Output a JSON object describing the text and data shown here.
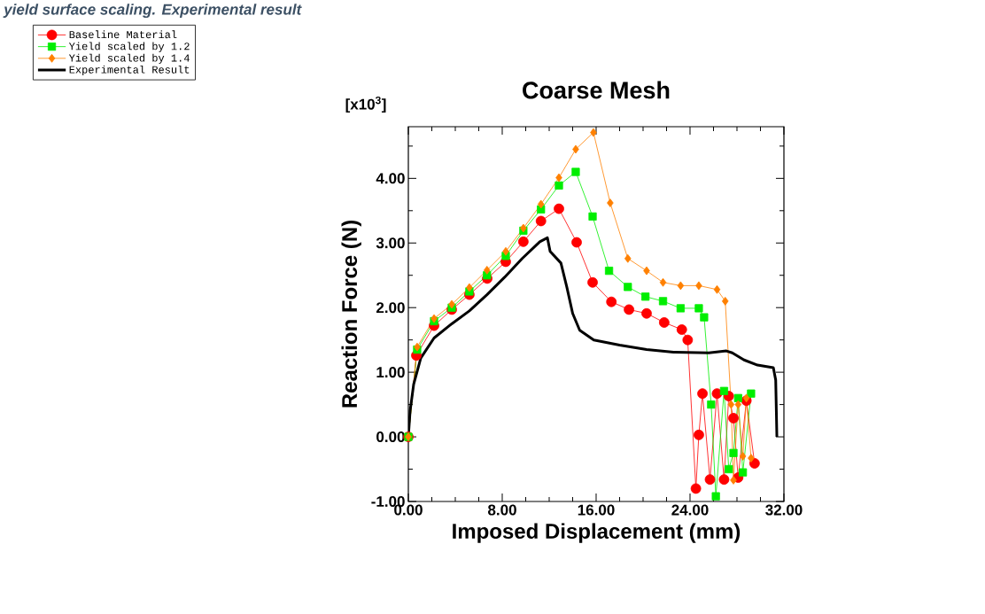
{
  "chart_data": {
    "type": "line",
    "title": "Coarse Mesh",
    "xlabel": "Imposed Displacement (mm)",
    "ylabel": "Reaction Force (N)",
    "annotations": [
      "[x10$^{3}$]",
      "yield surface scaling. Experimental result"
    ],
    "xlim": [
      0,
      32
    ],
    "ylim": [
      -1,
      4.8
    ],
    "xticks": [
      {
        "value": 0,
        "label": "0.00"
      },
      {
        "value": 2,
        "label": null
      },
      {
        "value": 4,
        "label": null
      },
      {
        "value": 6,
        "label": null
      },
      {
        "value": 8,
        "label": "8.00"
      },
      {
        "value": 10,
        "label": null
      },
      {
        "value": 12,
        "label": null
      },
      {
        "value": 14,
        "label": null
      },
      {
        "value": 16,
        "label": "16.00"
      },
      {
        "value": 18,
        "label": null
      },
      {
        "value": 20,
        "label": null
      },
      {
        "value": 22,
        "label": null
      },
      {
        "value": 24,
        "label": "24.00"
      },
      {
        "value": 26,
        "label": null
      },
      {
        "value": 28,
        "label": null
      },
      {
        "value": 30,
        "label": null
      },
      {
        "value": 32,
        "label": "32.00"
      }
    ],
    "yticks": [
      {
        "value": -1,
        "label": "-1.00"
      },
      {
        "value": -0.5,
        "label": null
      },
      {
        "value": 0,
        "label": "0.00"
      },
      {
        "value": 0.5,
        "label": null
      },
      {
        "value": 1,
        "label": "1.00"
      },
      {
        "value": 1.5,
        "label": null
      },
      {
        "value": 2,
        "label": "2.00"
      },
      {
        "value": 2.5,
        "label": null
      },
      {
        "value": 3,
        "label": "3.00"
      },
      {
        "value": 3.5,
        "label": null
      },
      {
        "value": 4,
        "label": "4.00"
      },
      {
        "value": 4.5,
        "label": null
      }
    ],
    "legend": "top left",
    "grid": false,
    "series": [
      {
        "name": "Baseline Material",
        "color": "#ff0000",
        "marker": "circle",
        "x": [
          0,
          0.68,
          2.19,
          3.7,
          5.2,
          6.72,
          8.3,
          9.8,
          11.3,
          12.83,
          14.34,
          15.7,
          17.3,
          18.8,
          20.3,
          21.8,
          23.3,
          23.8,
          24.5,
          24.75,
          25.06,
          25.7,
          26.3,
          26.9,
          27.3,
          27.7,
          28.1,
          28.8,
          29.5
        ],
        "values": [
          0,
          1.26,
          1.72,
          1.97,
          2.2,
          2.45,
          2.71,
          3.02,
          3.34,
          3.53,
          3.01,
          2.39,
          2.09,
          1.97,
          1.91,
          1.77,
          1.66,
          1.5,
          -0.8,
          0.03,
          0.67,
          -0.66,
          0.67,
          -0.66,
          0.63,
          0.29,
          -0.63,
          0.56,
          -0.41
        ]
      },
      {
        "name": "Yield scaled by 1.2",
        "color": "#00ee00",
        "marker": "square",
        "x": [
          0,
          0.75,
          2.19,
          3.7,
          5.2,
          6.7,
          8.3,
          9.8,
          11.3,
          12.83,
          14.26,
          15.7,
          17.1,
          18.7,
          20.2,
          21.7,
          23.2,
          24.75,
          25.2,
          25.8,
          26.2,
          26.9,
          27.3,
          27.7,
          28.1,
          28.5,
          29.2
        ],
        "values": [
          0,
          1.35,
          1.79,
          2.0,
          2.25,
          2.5,
          2.8,
          3.19,
          3.52,
          3.89,
          4.1,
          3.41,
          2.57,
          2.32,
          2.17,
          2.1,
          1.99,
          1.99,
          1.85,
          0.5,
          -0.92,
          0.71,
          -0.5,
          -0.25,
          0.6,
          -0.55,
          0.67
        ]
      },
      {
        "name": "Yield scaled by 1.4",
        "color": "#ff8000",
        "marker": "diamond",
        "x": [
          0,
          0.75,
          2.19,
          3.7,
          5.2,
          6.7,
          8.3,
          9.8,
          11.3,
          12.83,
          14.26,
          15.77,
          17.2,
          18.7,
          20.3,
          21.7,
          23.2,
          24.75,
          26.3,
          27.0,
          27.5,
          27.7,
          28.1,
          28.5,
          28.8,
          29.2
        ],
        "values": [
          0,
          1.39,
          1.83,
          2.05,
          2.31,
          2.58,
          2.87,
          3.23,
          3.6,
          4.01,
          4.45,
          4.71,
          3.62,
          2.76,
          2.57,
          2.39,
          2.34,
          2.34,
          2.28,
          2.1,
          0.5,
          -0.67,
          0.5,
          -0.3,
          0.6,
          -0.33
        ]
      },
      {
        "name": "Experimental Result",
        "color": "#000000",
        "marker": "none",
        "x": [
          0,
          0.15,
          0.45,
          1.06,
          2.19,
          3.7,
          5.2,
          6.7,
          8.2,
          9.7,
          11.2,
          11.85,
          12.08,
          13.0,
          13.5,
          14.0,
          14.6,
          15.8,
          18.0,
          20.3,
          22.6,
          25.6,
          27.1,
          27.6,
          28.6,
          29.75,
          31.1,
          31.3,
          31.4
        ],
        "values": [
          0,
          0.4,
          0.81,
          1.22,
          1.53,
          1.75,
          1.95,
          2.2,
          2.47,
          2.76,
          3.02,
          3.08,
          2.87,
          2.69,
          2.32,
          1.91,
          1.65,
          1.5,
          1.42,
          1.35,
          1.31,
          1.3,
          1.33,
          1.3,
          1.19,
          1.11,
          1.07,
          0.88,
          0
        ]
      }
    ]
  }
}
